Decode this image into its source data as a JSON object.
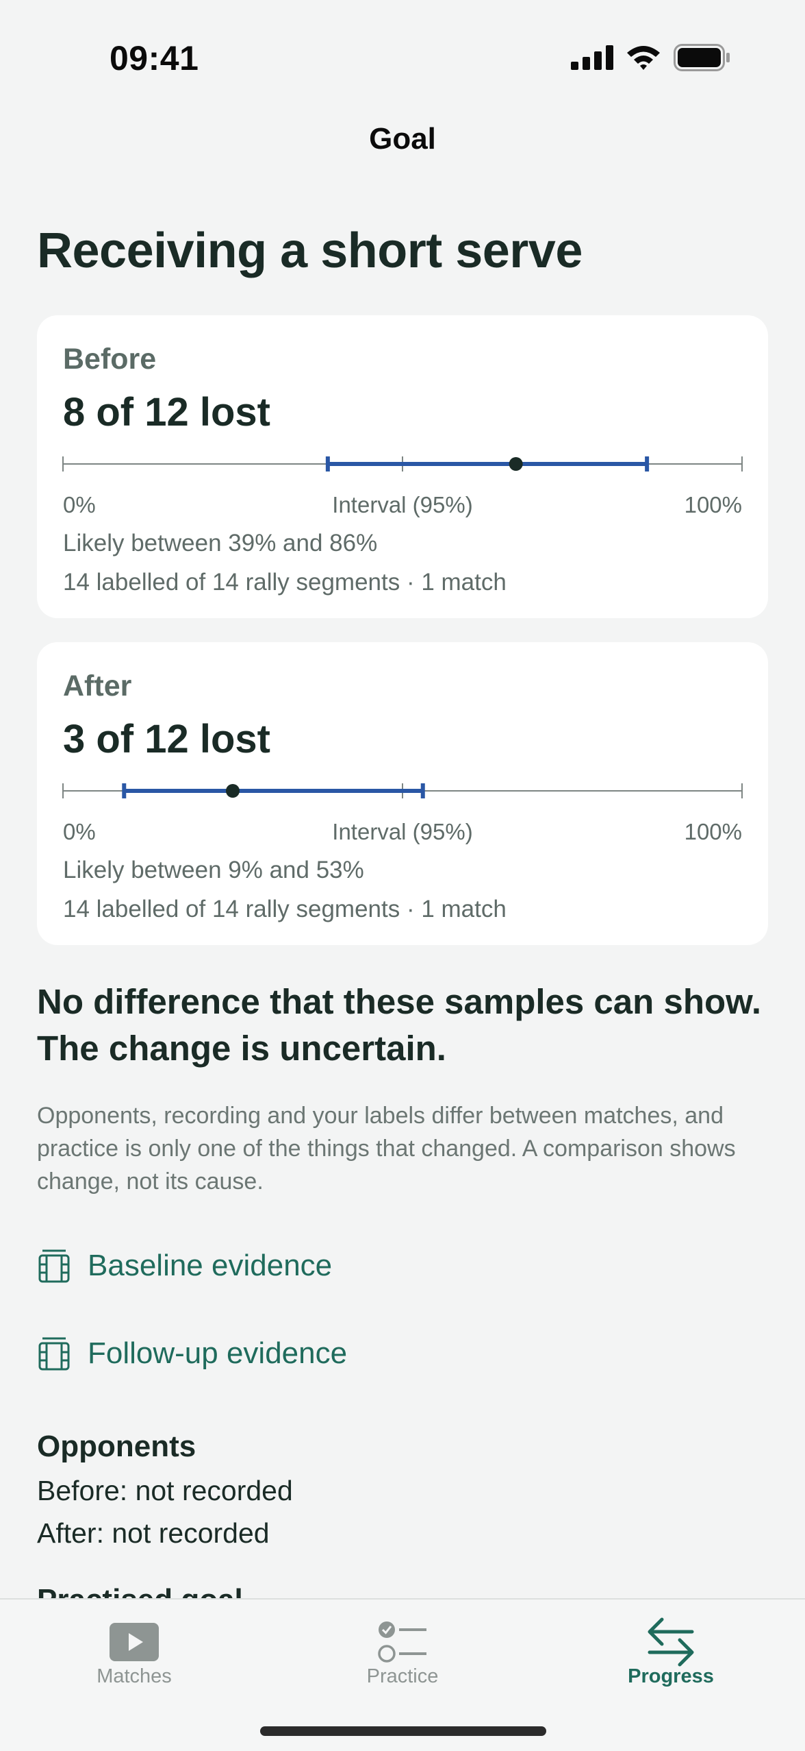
{
  "status_bar": {
    "time": "09:41"
  },
  "nav": {
    "title": "Goal"
  },
  "page": {
    "title": "Receiving a short serve"
  },
  "cards": [
    {
      "label": "Before",
      "value": "8 of 12 lost",
      "axis_left": "0%",
      "axis_mid": "Interval (95%)",
      "axis_right": "100%",
      "likely": "Likely between 39% and 86%",
      "detail": "14 labelled of 14 rally segments · 1 match",
      "point": 0.667,
      "low": 0.39,
      "high": 0.86
    },
    {
      "label": "After",
      "value": "3 of 12 lost",
      "axis_left": "0%",
      "axis_mid": "Interval (95%)",
      "axis_right": "100%",
      "likely": "Likely between 9% and 53%",
      "detail": "14 labelled of 14 rally segments · 1 match",
      "point": 0.25,
      "low": 0.09,
      "high": 0.53
    }
  ],
  "verdict": "No difference that these samples can show. The change is uncertain.",
  "caveat": "Opponents, recording and your labels differ between matches, and practice is only one of the things that changed. A comparison shows change, not its cause.",
  "evidence": {
    "baseline": "Baseline evidence",
    "followup": "Follow-up evidence"
  },
  "opponents": {
    "heading": "Opponents",
    "before": "Before: not recorded",
    "after": "After: not recorded"
  },
  "next_section": {
    "heading": "Practised goal"
  },
  "tabs": [
    {
      "label": "Matches",
      "icon": "play-icon",
      "active": false
    },
    {
      "label": "Practice",
      "icon": "checklist-icon",
      "active": false
    },
    {
      "label": "Progress",
      "icon": "arrows-icon",
      "active": true
    }
  ],
  "colors": {
    "accent": "#1f6b5c",
    "interval": "#2a57a5",
    "point": "#1a2b26",
    "background": "#f3f4f4"
  }
}
